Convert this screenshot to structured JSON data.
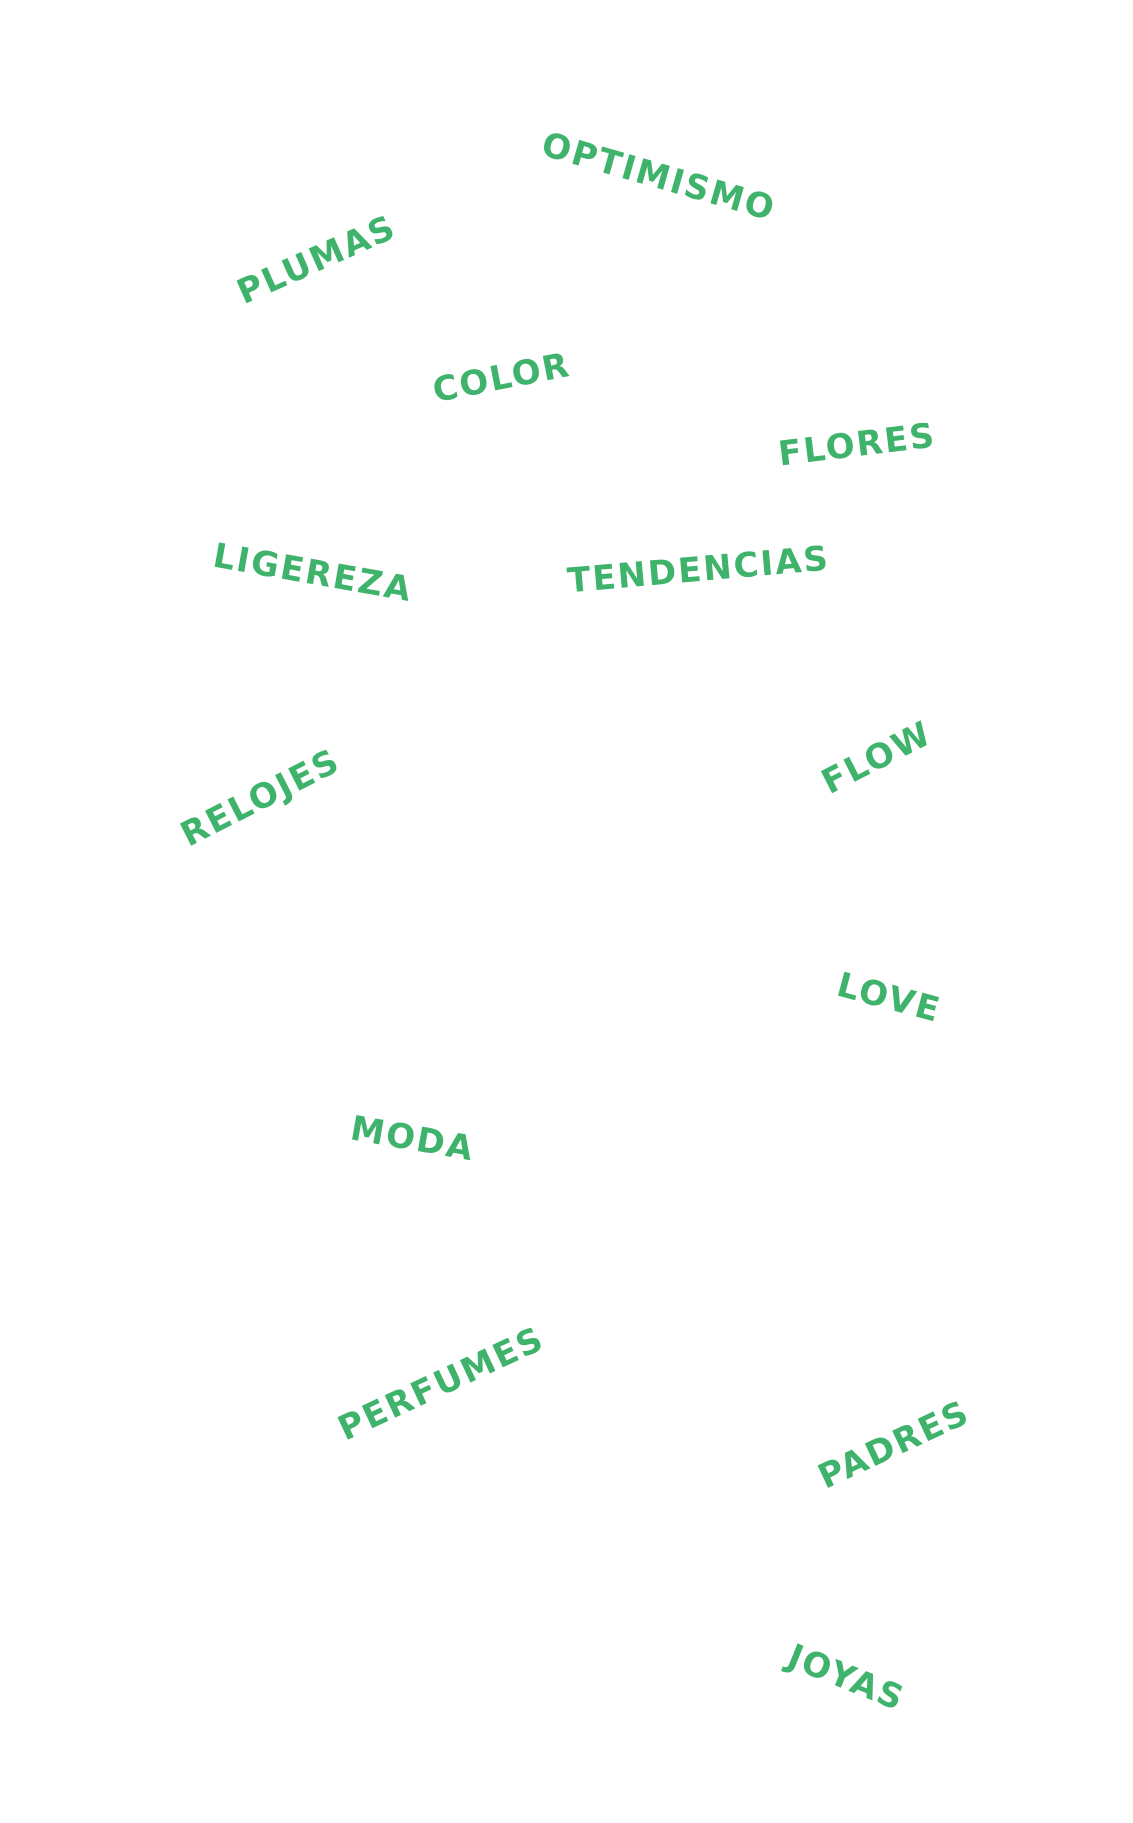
{
  "theme": {
    "background": "#ffffff",
    "word_color": "#3fb36c"
  },
  "words": {
    "optimismo": "OPTIMISMO",
    "plumas": "PLUMAS",
    "color": "COLOR",
    "flores": "FLORES",
    "ligereza": "LIGEREZA",
    "tendencias": "TENDENCIAS",
    "flow": "FLOW",
    "relojes": "RELOJES",
    "love": "LOVE",
    "moda": "MODA",
    "perfumes": "PERFUMES",
    "padres": "PADRES",
    "joyas": "JOYAS"
  }
}
